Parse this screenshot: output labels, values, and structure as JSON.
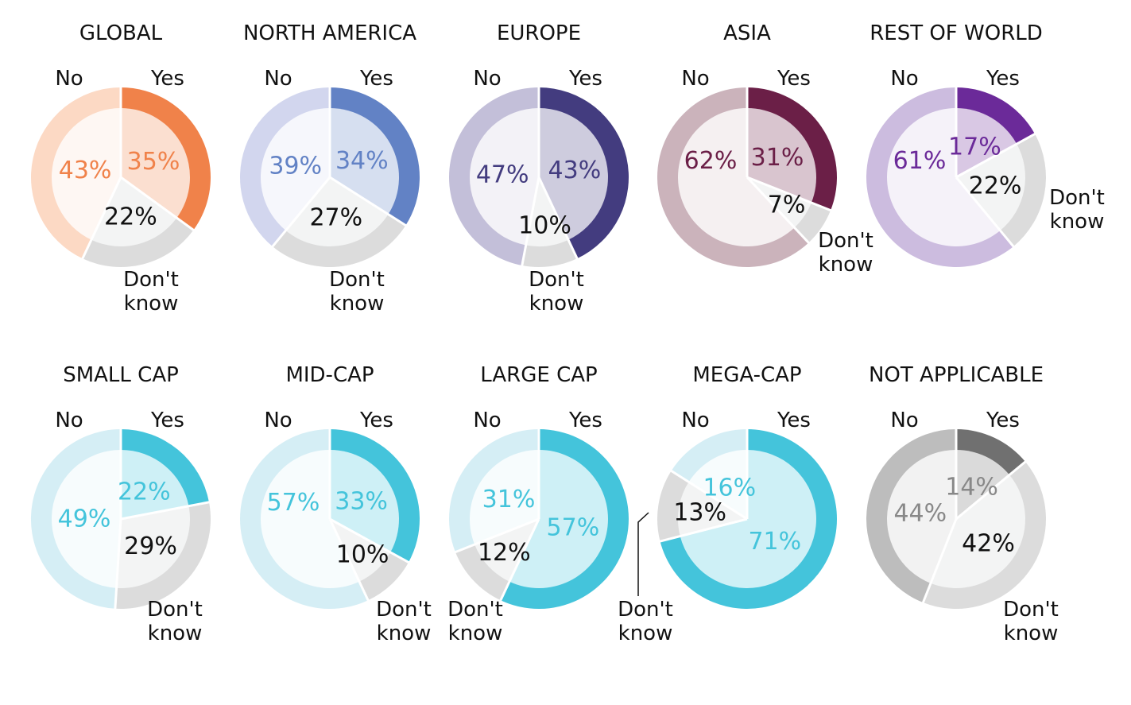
{
  "chart_data": [
    {
      "type": "pie",
      "title": "GLOBAL",
      "categories": [
        "Yes",
        "Don't know",
        "No"
      ],
      "values": [
        35,
        22,
        43
      ],
      "colors": {
        "yes": "#F0824A",
        "dk": "#DCDCDC",
        "no": "#FCD9C4",
        "pct_yes": "#F0824A",
        "pct_no": "#F0824A",
        "pct_dk": "#111111"
      }
    },
    {
      "type": "pie",
      "title": "NORTH AMERICA",
      "categories": [
        "Yes",
        "Don't know",
        "No"
      ],
      "values": [
        34,
        27,
        39
      ],
      "colors": {
        "yes": "#6282C5",
        "dk": "#DCDCDC",
        "no": "#D2D6EE",
        "pct_yes": "#6282C5",
        "pct_no": "#6282C5",
        "pct_dk": "#111111"
      }
    },
    {
      "type": "pie",
      "title": "EUROPE",
      "categories": [
        "Yes",
        "Don't know",
        "No"
      ],
      "values": [
        43,
        10,
        47
      ],
      "colors": {
        "yes": "#433C7F",
        "dk": "#DCDCDC",
        "no": "#C3BFD9",
        "pct_yes": "#433C7F",
        "pct_no": "#433C7F",
        "pct_dk": "#111111"
      }
    },
    {
      "type": "pie",
      "title": "ASIA",
      "categories": [
        "Yes",
        "Don't know",
        "No"
      ],
      "values": [
        31,
        7,
        62
      ],
      "colors": {
        "yes": "#6B1F47",
        "dk": "#DCDCDC",
        "no": "#CBB3BB",
        "pct_yes": "#6B1F47",
        "pct_no": "#6B1F47",
        "pct_dk": "#111111"
      }
    },
    {
      "type": "pie",
      "title": "REST OF WORLD",
      "categories": [
        "Yes",
        "Don't know",
        "No"
      ],
      "values": [
        17,
        22,
        61
      ],
      "colors": {
        "yes": "#6B2A99",
        "dk": "#DCDCDC",
        "no": "#CCBCDF",
        "pct_yes": "#6B2A99",
        "pct_no": "#6B2A99",
        "pct_dk": "#111111"
      }
    },
    {
      "type": "pie",
      "title": "SMALL CAP",
      "categories": [
        "Yes",
        "Don't know",
        "No"
      ],
      "values": [
        22,
        29,
        49
      ],
      "colors": {
        "yes": "#44C4DB",
        "dk": "#DCDCDC",
        "no": "#D5EEF5",
        "pct_yes": "#44C4DB",
        "pct_no": "#44C4DB",
        "pct_dk": "#111111"
      }
    },
    {
      "type": "pie",
      "title": "MID-CAP",
      "categories": [
        "Yes",
        "Don't know",
        "No"
      ],
      "values": [
        33,
        10,
        57
      ],
      "colors": {
        "yes": "#44C4DB",
        "dk": "#DCDCDC",
        "no": "#D5EEF5",
        "pct_yes": "#44C4DB",
        "pct_no": "#44C4DB",
        "pct_dk": "#111111"
      }
    },
    {
      "type": "pie",
      "title": "LARGE CAP",
      "categories": [
        "Yes",
        "Don't know",
        "No"
      ],
      "values": [
        57,
        12,
        31
      ],
      "colors": {
        "yes": "#44C4DB",
        "dk": "#DCDCDC",
        "no": "#D5EEF5",
        "pct_yes": "#44C4DB",
        "pct_no": "#44C4DB",
        "pct_dk": "#111111"
      }
    },
    {
      "type": "pie",
      "title": "MEGA-CAP",
      "categories": [
        "Yes",
        "Don't know",
        "No"
      ],
      "values": [
        71,
        13,
        16
      ],
      "colors": {
        "yes": "#44C4DB",
        "dk": "#DCDCDC",
        "no": "#D5EEF5",
        "pct_yes": "#44C4DB",
        "pct_no": "#44C4DB",
        "pct_dk": "#111111"
      }
    },
    {
      "type": "pie",
      "title": "NOT APPLICABLE",
      "categories": [
        "Yes",
        "Don't know",
        "No"
      ],
      "values": [
        14,
        42,
        44
      ],
      "colors": {
        "yes": "#707070",
        "dk": "#DCDCDC",
        "no": "#BDBDBD",
        "pct_yes": "#888888",
        "pct_no": "#888888",
        "pct_dk": "#111111"
      }
    }
  ],
  "labels": {
    "yes": "Yes",
    "no": "No",
    "dk_line1": "Don't",
    "dk_line2": "know"
  }
}
